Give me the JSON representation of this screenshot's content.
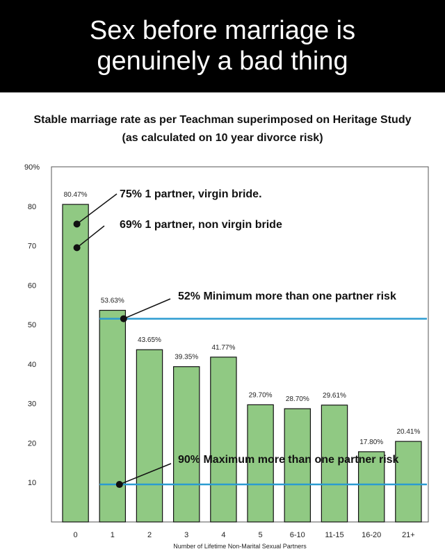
{
  "banner": {
    "line1": "Sex before marriage is",
    "line2": "genuinely a bad thing"
  },
  "chart_data": {
    "type": "bar",
    "title": "Stable marriage rate as per Teachman superimposed on Heritage Study",
    "subtitle": "(as calculated on 10 year divorce risk)",
    "xlabel": "Number of Lifetime Non-Marital Sexual Partners",
    "ylabel": "",
    "ylim": [
      0,
      90
    ],
    "y_tick_labels": [
      "10",
      "20",
      "30",
      "40",
      "50",
      "60",
      "70",
      "80",
      "90%"
    ],
    "categories": [
      "0",
      "1",
      "2",
      "3",
      "4",
      "5",
      "6-10",
      "11-15",
      "16-20",
      "21+"
    ],
    "values": [
      80.47,
      53.63,
      43.65,
      39.35,
      41.77,
      29.7,
      28.7,
      29.61,
      17.8,
      20.41
    ],
    "data_labels": [
      "80.47%",
      "53.63%",
      "43.65%",
      "39.35%",
      "41.77%",
      "29.70%",
      "28.70%",
      "29.61%",
      "17.80%",
      "20.41%"
    ],
    "bar_color": "#90c983",
    "reference_line_color": "#2b9bd1",
    "reference_lines": [
      {
        "y": 51.5,
        "label": "52% Minimum more than one partner risk"
      },
      {
        "y": 9.5,
        "label": "90% Maximum more than one partner risk"
      }
    ],
    "annotations": [
      {
        "category_index": 0,
        "y": 75.5,
        "label": "75% 1 partner, virgin bride."
      },
      {
        "category_index": 0,
        "y": 69.5,
        "label": "69%  1 partner, non virgin bride"
      }
    ],
    "grid": false
  }
}
